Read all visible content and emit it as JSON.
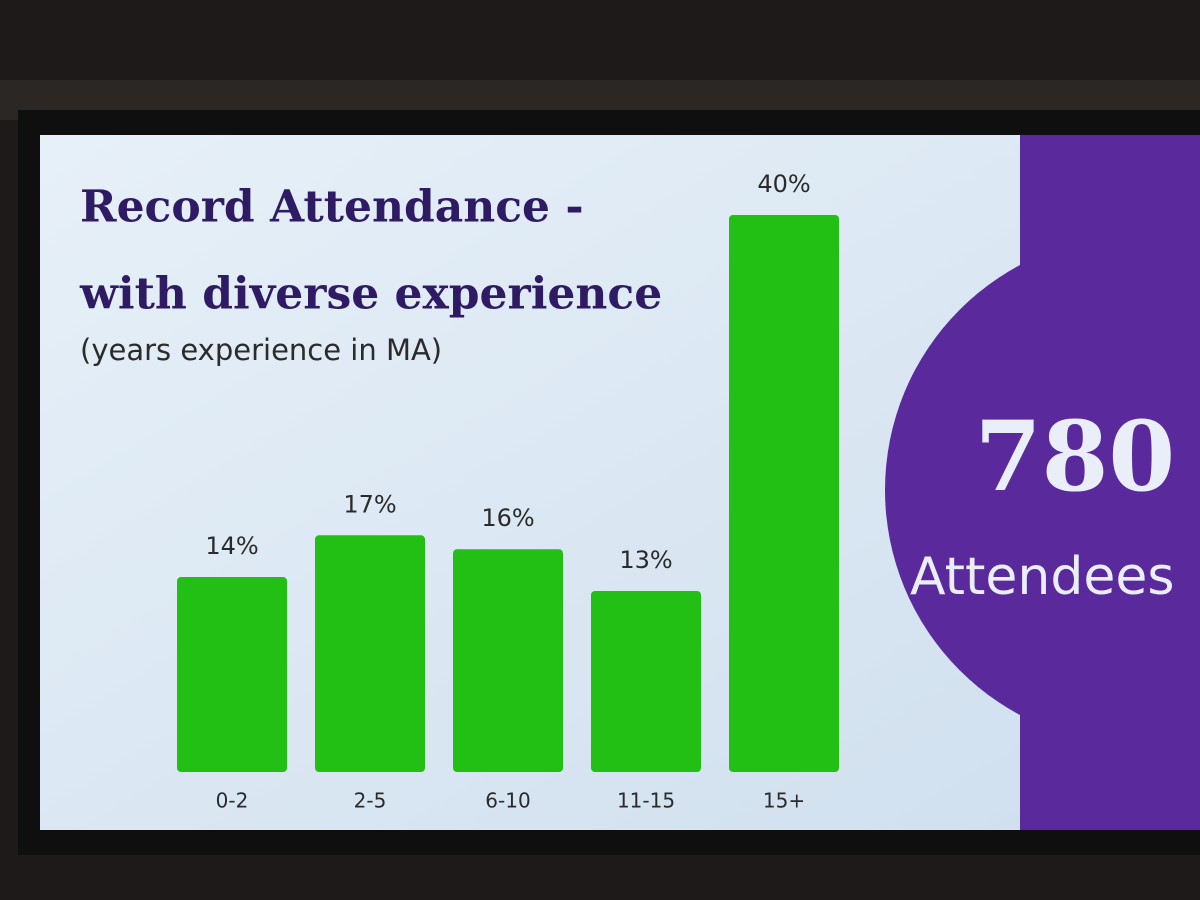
{
  "chart_data": {
    "type": "bar",
    "title": [
      "Record Attendance -",
      "with diverse experience"
    ],
    "subtitle": "(years experience in MA)",
    "categories": [
      "0-2",
      "2-5",
      "6-10",
      "11-15",
      "15+"
    ],
    "values": [
      14,
      17,
      16,
      13,
      40
    ],
    "value_labels": [
      "14%",
      "17%",
      "16%",
      "13%",
      "40%"
    ],
    "color": "#22c015",
    "annotations": [
      "780",
      "Attendees"
    ]
  }
}
